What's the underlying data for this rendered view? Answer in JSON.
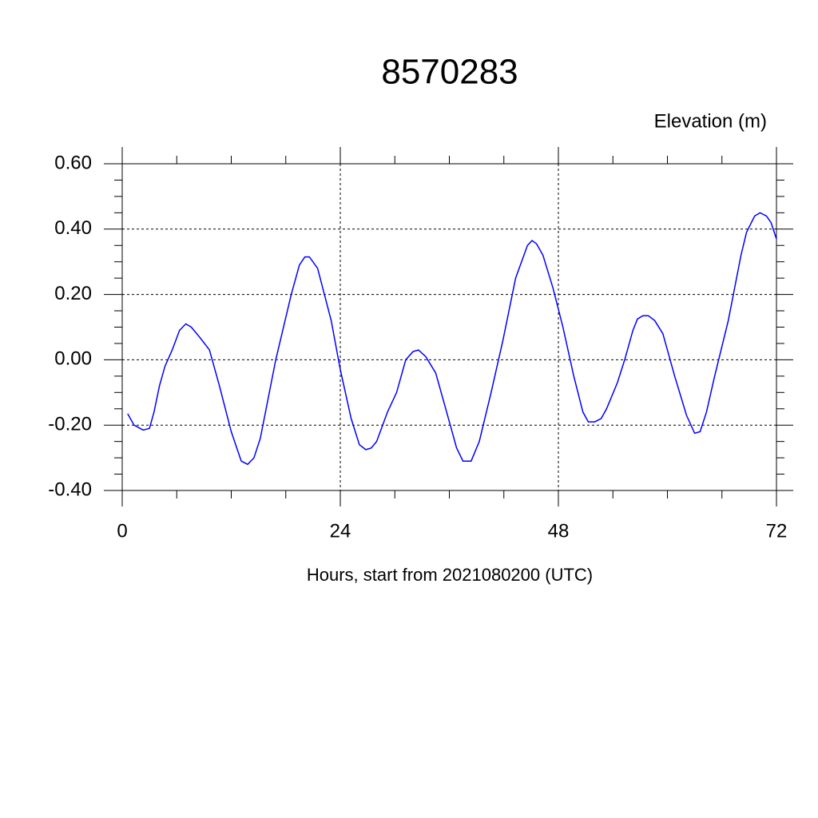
{
  "chart_data": {
    "type": "line",
    "title": "8570283",
    "subtitle": "Elevation (m)",
    "x_label": "Hours, start from 2021080200 (UTC)",
    "x": [
      0.6,
      1.3,
      2.3,
      3.0,
      3.5,
      4.1,
      4.7,
      5.5,
      6.3,
      7.0,
      7.6,
      8.5,
      9.6,
      10.7,
      12.0,
      13.1,
      13.8,
      14.5,
      15.2,
      16.9,
      18.6,
      19.5,
      20.1,
      20.6,
      21.5,
      23.0,
      24.0,
      25.2,
      26.1,
      26.8,
      27.4,
      28.0,
      29.2,
      30.2,
      31.2,
      32.0,
      32.6,
      33.4,
      34.5,
      35.6,
      36.8,
      37.5,
      38.4,
      39.3,
      40.6,
      41.9,
      43.3,
      44.6,
      45.1,
      45.6,
      46.3,
      47.4,
      48.5,
      49.7,
      50.7,
      51.3,
      52.0,
      52.7,
      53.3,
      54.5,
      55.3,
      56.2,
      56.7,
      57.3,
      57.9,
      58.6,
      59.5,
      60.8,
      62.1,
      63.0,
      63.6,
      64.3,
      65.2,
      66.7,
      68.1,
      68.7,
      69.6,
      70.2,
      70.9,
      71.4,
      72.0
    ],
    "series": [
      {
        "name": "Elevation",
        "color": "#0000ff",
        "values": [
          -0.165,
          -0.2,
          -0.215,
          -0.21,
          -0.16,
          -0.08,
          -0.02,
          0.03,
          0.09,
          0.11,
          0.1,
          0.07,
          0.03,
          -0.08,
          -0.22,
          -0.31,
          -0.32,
          -0.3,
          -0.24,
          0.0,
          0.2,
          0.29,
          0.315,
          0.315,
          0.28,
          0.12,
          -0.03,
          -0.18,
          -0.26,
          -0.275,
          -0.27,
          -0.25,
          -0.16,
          -0.1,
          0.0,
          0.025,
          0.03,
          0.01,
          -0.04,
          -0.15,
          -0.27,
          -0.31,
          -0.31,
          -0.25,
          -0.1,
          0.06,
          0.25,
          0.35,
          0.365,
          0.355,
          0.32,
          0.22,
          0.1,
          -0.05,
          -0.16,
          -0.19,
          -0.19,
          -0.18,
          -0.15,
          -0.07,
          0.0,
          0.09,
          0.125,
          0.135,
          0.135,
          0.12,
          0.08,
          -0.05,
          -0.17,
          -0.225,
          -0.22,
          -0.16,
          -0.05,
          0.12,
          0.32,
          0.39,
          0.44,
          0.45,
          0.44,
          0.42,
          0.37
        ]
      }
    ],
    "xlim": [
      0,
      72
    ],
    "xticks": [
      0,
      24,
      48,
      72
    ],
    "xminorticks": [
      6,
      12,
      18,
      30,
      36,
      42,
      54,
      60,
      66
    ],
    "ylim": [
      -0.4,
      0.6
    ],
    "yticks": [
      {
        "value": -0.4,
        "label": "-0.40"
      },
      {
        "value": -0.2,
        "label": "-0.20"
      },
      {
        "value": 0,
        "label": "0.00"
      },
      {
        "value": 0.2,
        "label": "0.20"
      },
      {
        "value": 0.4,
        "label": "0.40"
      },
      {
        "value": 0.6,
        "label": "0.60"
      }
    ],
    "yminorticks": [
      -0.35,
      -0.3,
      -0.25,
      -0.15,
      -0.1,
      -0.05,
      0.05,
      0.1,
      0.15,
      0.25,
      0.3,
      0.35,
      0.45,
      0.5,
      0.55
    ],
    "grid": true
  }
}
